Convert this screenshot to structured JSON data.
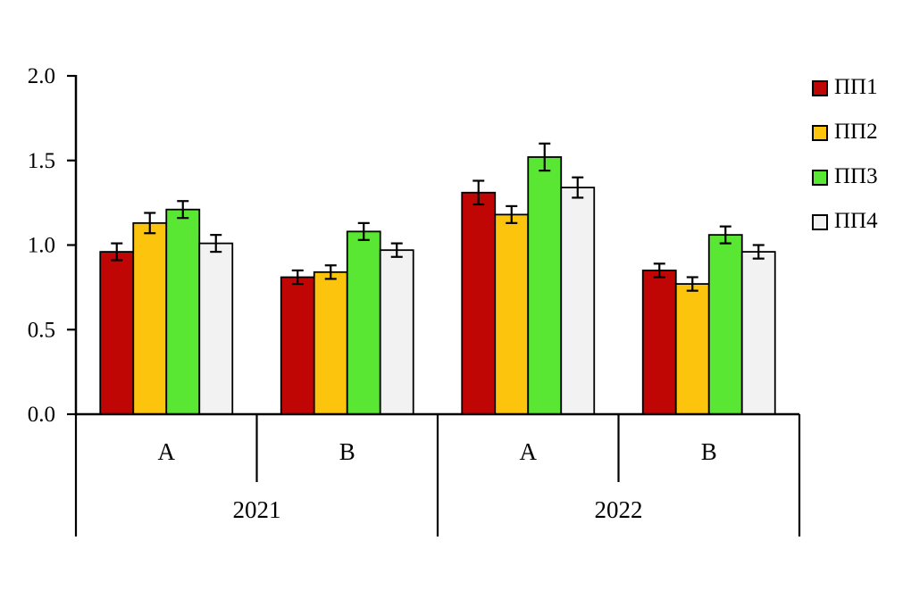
{
  "page": {
    "background": "#ffffff"
  },
  "chart_data": {
    "type": "bar",
    "ylim": [
      0,
      2
    ],
    "ytick_step": 0.5,
    "ytick_labels": [
      "0.0",
      "0.5",
      "1.0",
      "1.5",
      "2.0"
    ],
    "grid": false,
    "legend_position": "top-right",
    "group_labels": [
      "A",
      "B",
      "A",
      "B"
    ],
    "supergroups": [
      {
        "label": "2021",
        "groups": [
          0,
          1
        ]
      },
      {
        "label": "2022",
        "groups": [
          2,
          3
        ]
      }
    ],
    "series": [
      {
        "name": "ПП1",
        "color": "#c00505",
        "values": [
          0.96,
          0.81,
          1.31,
          0.85
        ],
        "errors": [
          0.05,
          0.04,
          0.07,
          0.04
        ]
      },
      {
        "name": "ПП2",
        "color": "#fdc40e",
        "values": [
          1.13,
          0.84,
          1.18,
          0.77
        ],
        "errors": [
          0.06,
          0.04,
          0.05,
          0.04
        ]
      },
      {
        "name": "ПП3",
        "color": "#59e733",
        "values": [
          1.21,
          1.08,
          1.52,
          1.06
        ],
        "errors": [
          0.05,
          0.05,
          0.08,
          0.05
        ]
      },
      {
        "name": "ПП4",
        "color": "#f2f2f2",
        "values": [
          1.01,
          0.97,
          1.34,
          0.96
        ],
        "errors": [
          0.05,
          0.04,
          0.06,
          0.04
        ]
      }
    ],
    "error_bar_color": "#000000",
    "bar_border_color": "#000000",
    "axis_color": "#000000"
  }
}
